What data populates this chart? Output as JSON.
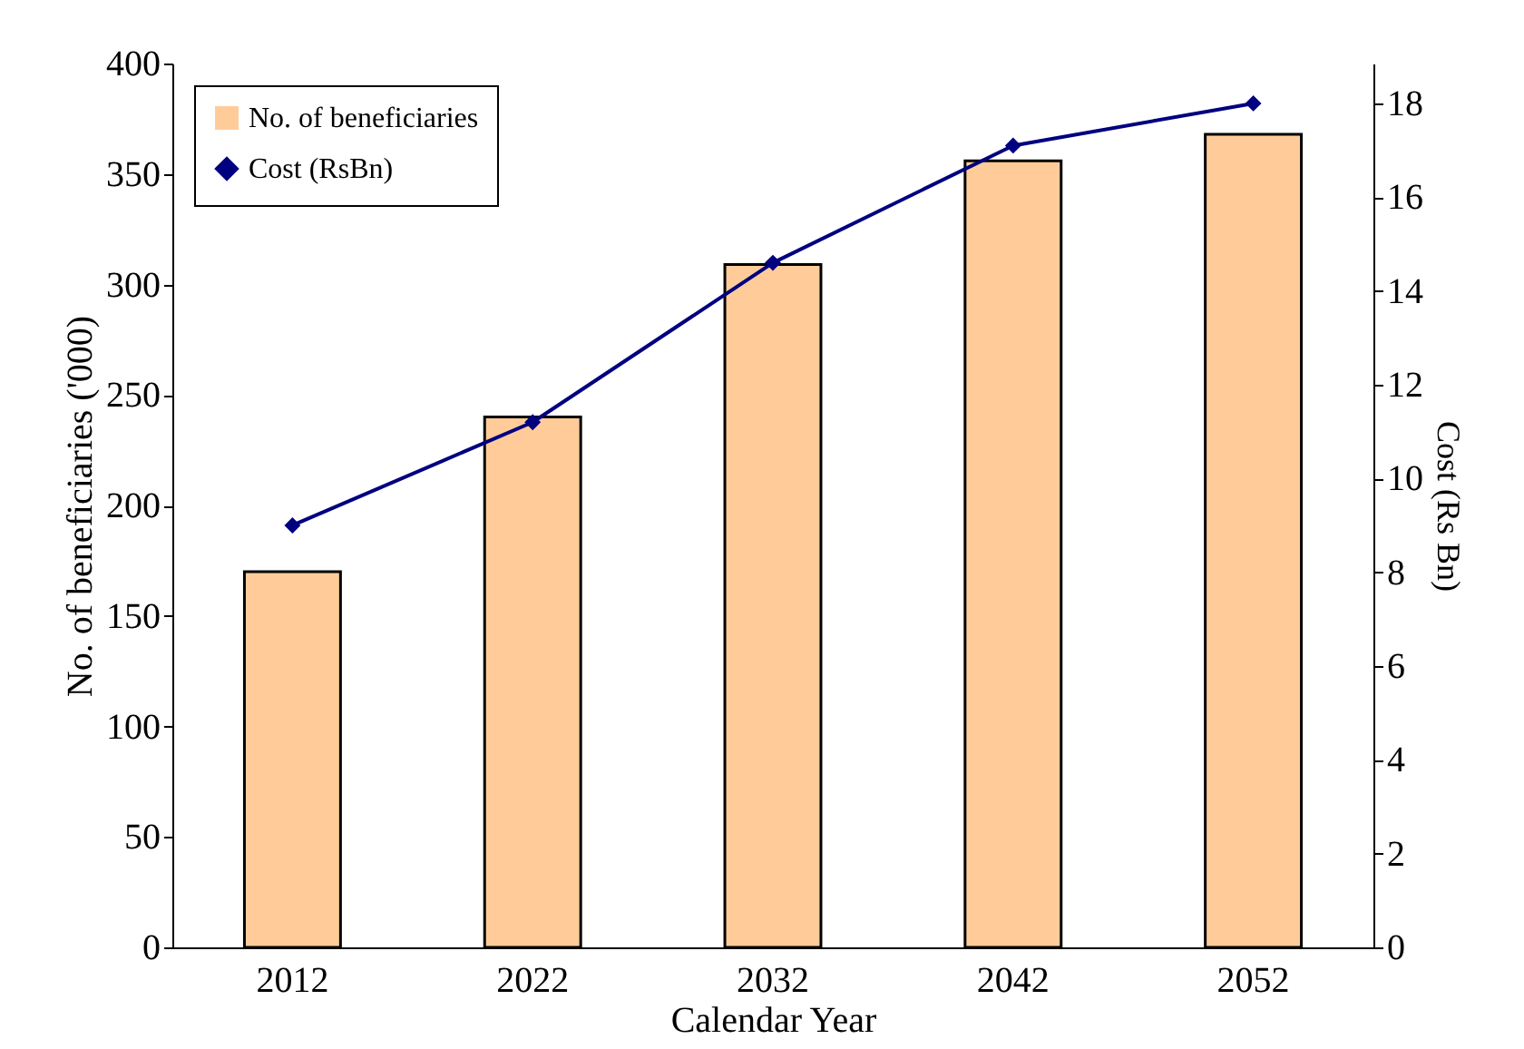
{
  "chart_data": {
    "type": "bar",
    "xlabel": "Calendar Year",
    "ylabel": "No. of beneficiaries ('000)",
    "y2label": "Cost (Rs Bn)",
    "categories": [
      "2012",
      "2022",
      "2032",
      "2042",
      "2052"
    ],
    "series": [
      {
        "name": "No. of beneficiaries",
        "type": "bar",
        "color": "#ffcc99",
        "values": [
          170,
          240,
          309,
          356,
          368
        ]
      },
      {
        "name": "Cost (RsBn)",
        "type": "line",
        "axis": "y2",
        "color": "#000080",
        "values": [
          9.0,
          11.2,
          14.6,
          17.1,
          18.0
        ]
      }
    ],
    "ylim": [
      0,
      400
    ],
    "yticks": [
      0,
      50,
      100,
      150,
      200,
      250,
      300,
      350,
      400
    ],
    "y2lim": [
      0,
      18.85
    ],
    "y2ticks": [
      0,
      2,
      4,
      6,
      8,
      10,
      12,
      14,
      16,
      18
    ],
    "grid": false,
    "legend": "top left",
    "marker": "diamond",
    "line_style": "solid"
  }
}
